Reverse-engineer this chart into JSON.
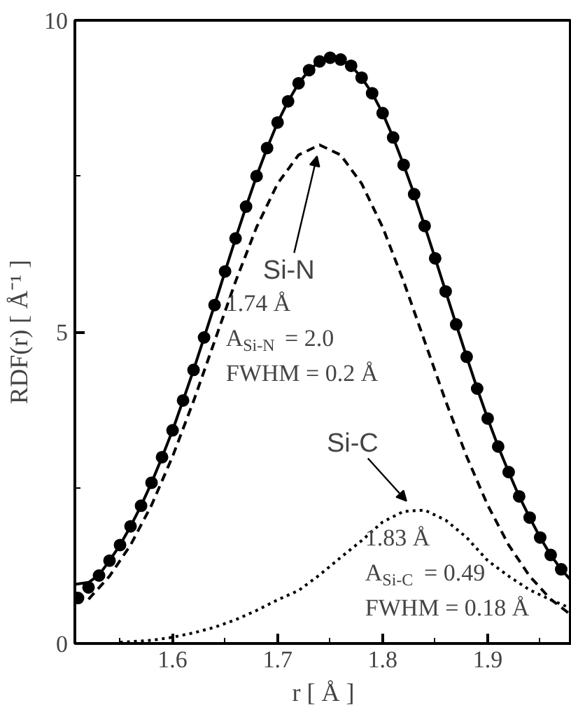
{
  "chart_data": {
    "type": "line",
    "xlabel": "r [ Å ]",
    "ylabel": "RDF(r) [ Å⁻¹ ]",
    "xlim": [
      1.507,
      1.98
    ],
    "ylim": [
      0,
      10
    ],
    "xticks": [
      {
        "value": 1.55,
        "label": null
      },
      1.6,
      {
        "value": 1.65,
        "label": null
      },
      1.7,
      {
        "value": 1.75,
        "label": null
      },
      1.8,
      {
        "value": 1.85,
        "label": null
      },
      1.9,
      {
        "value": 1.95,
        "label": null
      }
    ],
    "yticks": [
      0,
      {
        "value": 2.5,
        "label": null
      },
      5,
      {
        "value": 7.5,
        "label": null
      },
      10
    ],
    "grid": false,
    "series": [
      {
        "color": "#000000",
        "line_style": "solid",
        "x": [
          1.507,
          1.52,
          1.53,
          1.54,
          1.55,
          1.56,
          1.57,
          1.58,
          1.59,
          1.6,
          1.61,
          1.62,
          1.63,
          1.64,
          1.65,
          1.66,
          1.67,
          1.68,
          1.69,
          1.7,
          1.71,
          1.72,
          1.73,
          1.74,
          1.75,
          1.76,
          1.77,
          1.78,
          1.79,
          1.8,
          1.81,
          1.82,
          1.83,
          1.84,
          1.85,
          1.86,
          1.87,
          1.88,
          1.89,
          1.9,
          1.91,
          1.92,
          1.93,
          1.94,
          1.95,
          1.96,
          1.97,
          1.98
        ],
        "values": [
          0.95,
          0.98,
          1.1,
          1.33,
          1.58,
          1.88,
          2.21,
          2.58,
          2.99,
          3.42,
          3.9,
          4.39,
          4.91,
          5.43,
          5.97,
          6.5,
          7.01,
          7.5,
          7.95,
          8.36,
          8.7,
          8.99,
          9.2,
          9.34,
          9.4,
          9.37,
          9.27,
          9.08,
          8.83,
          8.51,
          8.12,
          7.68,
          7.21,
          6.7,
          6.18,
          5.65,
          5.12,
          4.6,
          4.09,
          3.61,
          3.16,
          2.75,
          2.36,
          2.02,
          1.7,
          1.42,
          1.19,
          1.0
        ]
      },
      {
        "type": "scatter",
        "color": "#000000",
        "marker": "circle",
        "x": [
          1.51,
          1.52,
          1.53,
          1.54,
          1.55,
          1.56,
          1.57,
          1.58,
          1.59,
          1.6,
          1.61,
          1.62,
          1.63,
          1.64,
          1.65,
          1.66,
          1.67,
          1.68,
          1.69,
          1.7,
          1.71,
          1.72,
          1.73,
          1.74,
          1.75,
          1.76,
          1.77,
          1.78,
          1.79,
          1.8,
          1.81,
          1.82,
          1.83,
          1.84,
          1.85,
          1.86,
          1.87,
          1.88,
          1.89,
          1.9,
          1.91,
          1.92,
          1.93,
          1.94,
          1.95,
          1.96,
          1.97
        ],
        "values": [
          0.73,
          0.9,
          1.09,
          1.33,
          1.58,
          1.88,
          2.21,
          2.58,
          2.99,
          3.42,
          3.9,
          4.39,
          4.91,
          5.43,
          5.97,
          6.5,
          7.01,
          7.5,
          7.95,
          8.36,
          8.7,
          8.99,
          9.2,
          9.34,
          9.4,
          9.37,
          9.27,
          9.08,
          8.83,
          8.51,
          8.12,
          7.68,
          7.21,
          6.7,
          6.18,
          5.65,
          5.12,
          4.6,
          4.09,
          3.61,
          3.16,
          2.75,
          2.36,
          2.02,
          1.7,
          1.42,
          1.19
        ]
      },
      {
        "type": "line",
        "color": "#000000",
        "line_style": "dashed",
        "x": [
          1.52,
          1.54,
          1.56,
          1.58,
          1.6,
          1.62,
          1.64,
          1.66,
          1.68,
          1.7,
          1.72,
          1.74,
          1.76,
          1.78,
          1.8,
          1.82,
          1.84,
          1.86,
          1.88,
          1.9,
          1.92,
          1.94,
          1.96,
          1.98
        ],
        "values": [
          0.71,
          1.08,
          1.58,
          2.22,
          3.0,
          3.89,
          4.85,
          5.81,
          6.68,
          7.38,
          7.84,
          8.0,
          7.84,
          7.38,
          6.68,
          5.81,
          4.85,
          3.89,
          3.0,
          2.22,
          1.58,
          1.08,
          0.71,
          0.45
        ]
      },
      {
        "type": "line",
        "color": "#000000",
        "line_style": "dotted",
        "x": [
          1.55,
          1.58,
          1.6,
          1.62,
          1.64,
          1.66,
          1.68,
          1.7,
          1.72,
          1.74,
          1.76,
          1.78,
          1.8,
          1.82,
          1.84,
          1.86,
          1.88,
          1.9,
          1.92,
          1.94,
          1.96,
          1.98
        ],
        "values": [
          0.02,
          0.05,
          0.1,
          0.17,
          0.26,
          0.38,
          0.53,
          0.7,
          0.85,
          1.1,
          1.38,
          1.65,
          1.95,
          2.12,
          2.14,
          1.98,
          1.7,
          1.33,
          1.08,
          0.86,
          0.7,
          0.56
        ]
      }
    ],
    "annotations": [
      {
        "text": "Si-N",
        "x": 1.74,
        "y": 8.0
      },
      "1.74 Å",
      "A$_{Si-N}$ = 2.0",
      "FWHM = 0.2 Å",
      {
        "text": "Si-C",
        "x": 1.83,
        "y": 2.15
      },
      "1.83 Å",
      "A$_{Si-C}$ = 0.49",
      "FWHM = 0.18 Å"
    ]
  }
}
